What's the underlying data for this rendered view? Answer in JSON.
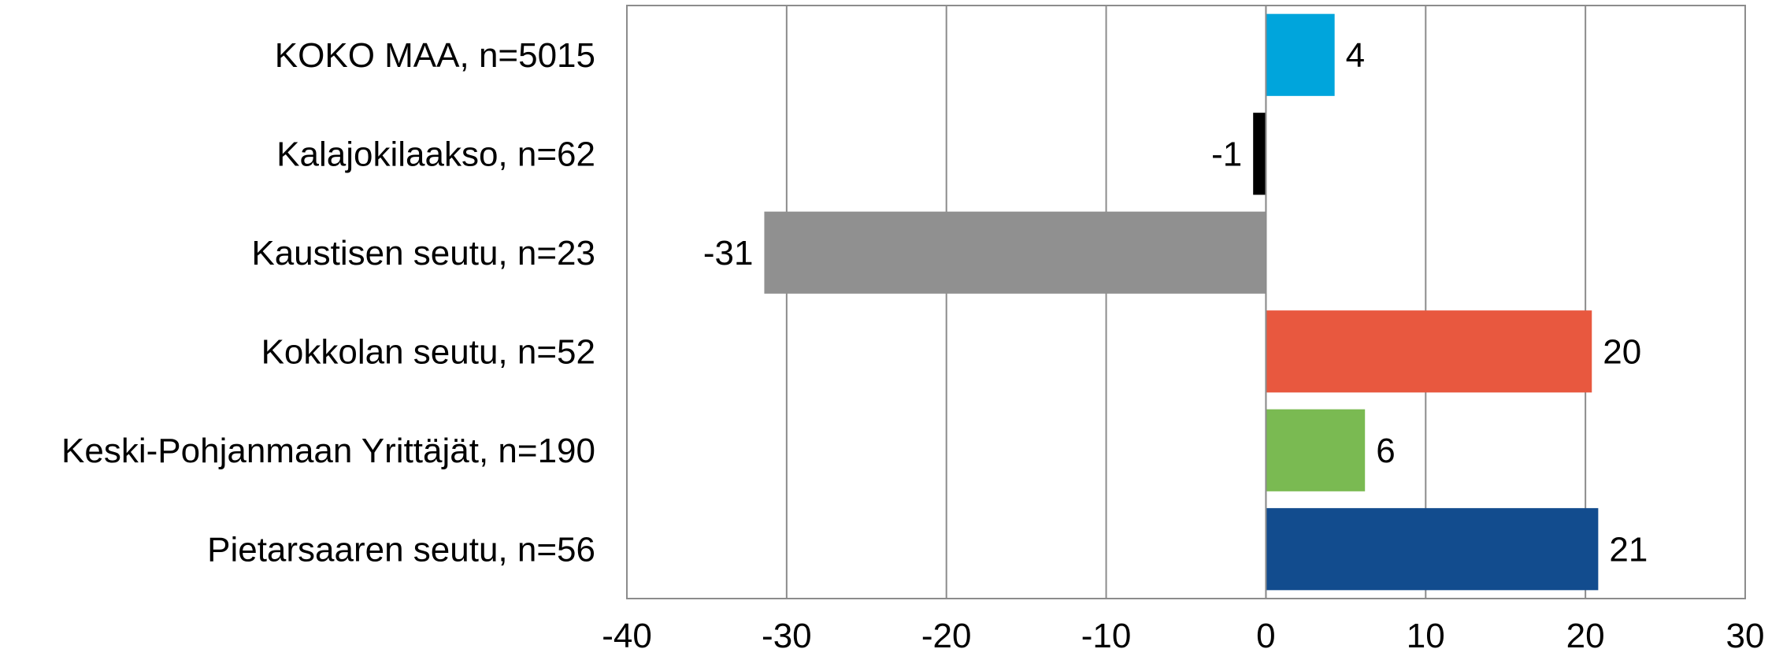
{
  "chart_data": {
    "type": "bar",
    "orientation": "horizontal",
    "title": "",
    "xlabel": "",
    "ylabel": "",
    "xlim": [
      -40,
      30
    ],
    "x_ticks": [
      -40,
      -30,
      -20,
      -10,
      0,
      10,
      20,
      30
    ],
    "x_tick_labels": [
      "-40",
      "-30",
      "-20",
      "-10",
      "0",
      "10",
      "20",
      "30"
    ],
    "grid": "vertical",
    "legend": "none",
    "categories": [
      "KOKO MAA, n=5015",
      "Kalajokilaakso, n=62",
      "Kaustisen seutu, n=23",
      "Kokkolan seutu, n=52",
      "Keski-Pohjanmaan Yrittäjät, n=190",
      "Pietarsaaren seutu, n=56"
    ],
    "values": [
      4.3,
      -0.8,
      -31.4,
      20.4,
      6.2,
      20.8
    ],
    "data_labels": [
      "4",
      "-1",
      "-31",
      "20",
      "6",
      "21"
    ],
    "colors": [
      "#00a5dc",
      "#000000",
      "#909090",
      "#e8583f",
      "#7aba52",
      "#124c8e"
    ]
  }
}
